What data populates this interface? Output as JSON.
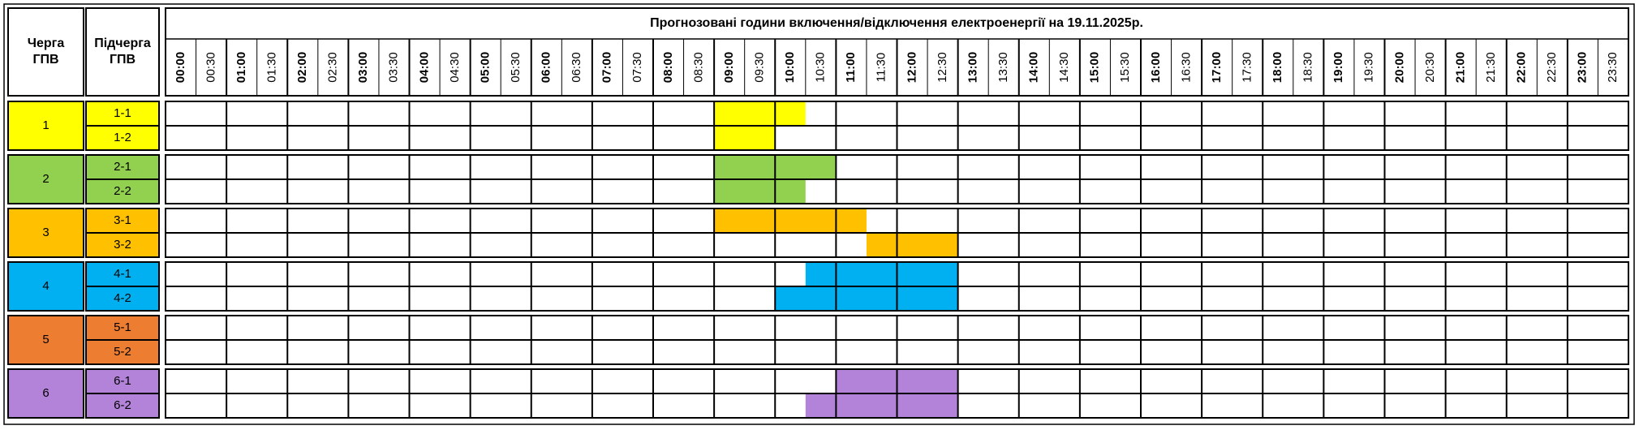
{
  "header": {
    "queue_label": "Черга ГПВ",
    "subqueue_label": "Підчерга ГПВ",
    "title": "Прогнозовані години включення/відключення електроенергії на 19.11.2025р.",
    "slots": [
      "00:00",
      "00:30",
      "01:00",
      "01:30",
      "02:00",
      "02:30",
      "03:00",
      "03:30",
      "04:00",
      "04:30",
      "05:00",
      "05:30",
      "06:00",
      "06:30",
      "07:00",
      "07:30",
      "08:00",
      "08:30",
      "09:00",
      "09:30",
      "10:00",
      "10:30",
      "11:00",
      "11:30",
      "12:00",
      "12:30",
      "13:00",
      "13:30",
      "14:00",
      "14:30",
      "15:00",
      "15:30",
      "16:00",
      "16:30",
      "17:00",
      "17:30",
      "18:00",
      "18:30",
      "19:00",
      "19:30",
      "20:00",
      "20:30",
      "21:00",
      "21:30",
      "22:00",
      "22:30",
      "23:00",
      "23:30"
    ]
  },
  "groups": [
    {
      "label": "1",
      "color": "#ffff00",
      "subgroups": [
        {
          "label": "1-1",
          "outages": [
            [
              9,
              10.5
            ]
          ]
        },
        {
          "label": "1-2",
          "outages": [
            [
              9,
              10
            ]
          ]
        }
      ]
    },
    {
      "label": "2",
      "color": "#92d050",
      "subgroups": [
        {
          "label": "2-1",
          "outages": [
            [
              9,
              11
            ]
          ]
        },
        {
          "label": "2-2",
          "outages": [
            [
              9,
              10.5
            ]
          ]
        }
      ]
    },
    {
      "label": "3",
      "color": "#ffc000",
      "subgroups": [
        {
          "label": "3-1",
          "outages": [
            [
              9,
              11.5
            ]
          ]
        },
        {
          "label": "3-2",
          "outages": [
            [
              11.5,
              13
            ]
          ]
        }
      ]
    },
    {
      "label": "4",
      "color": "#00b0f0",
      "subgroups": [
        {
          "label": "4-1",
          "outages": [
            [
              10.5,
              13
            ]
          ]
        },
        {
          "label": "4-2",
          "outages": [
            [
              10,
              13
            ]
          ]
        }
      ]
    },
    {
      "label": "5",
      "color": "#ed7d31",
      "subgroups": [
        {
          "label": "5-1",
          "outages": []
        },
        {
          "label": "5-2",
          "outages": []
        }
      ]
    },
    {
      "label": "6",
      "color": "#b283d8",
      "subgroups": [
        {
          "label": "6-1",
          "outages": [
            [
              11,
              13
            ]
          ]
        },
        {
          "label": "6-2",
          "outages": [
            [
              10.5,
              13
            ]
          ]
        }
      ]
    }
  ]
}
